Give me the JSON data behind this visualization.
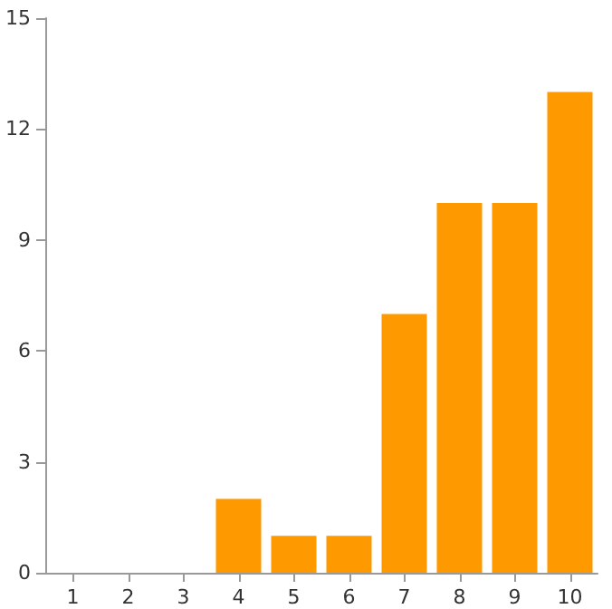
{
  "chart_data": {
    "type": "bar",
    "categories": [
      "1",
      "2",
      "3",
      "4",
      "5",
      "6",
      "7",
      "8",
      "9",
      "10"
    ],
    "values": [
      0,
      0,
      0,
      2,
      1,
      1,
      7,
      10,
      10,
      13
    ],
    "color": "#ff9900",
    "ylim": [
      0,
      15
    ],
    "yticks": [
      0,
      3,
      6,
      9,
      12,
      15
    ]
  }
}
